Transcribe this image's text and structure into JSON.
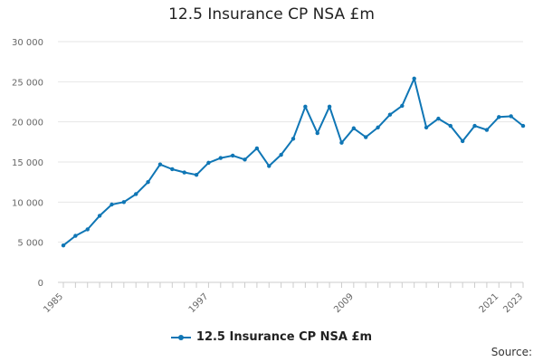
{
  "chart_data": {
    "type": "line",
    "title": "12.5 Insurance CP NSA £m",
    "xlabel": "",
    "ylabel": "",
    "ylim": [
      0,
      30000
    ],
    "y_ticks": [
      0,
      5000,
      10000,
      15000,
      20000,
      25000,
      30000
    ],
    "y_tick_labels": [
      "0",
      "5 000",
      "10 000",
      "15 000",
      "20 000",
      "25 000",
      "30 000"
    ],
    "x_tick_labels": [
      "1985",
      "1997",
      "2009",
      "2021",
      "2023"
    ],
    "x_tick_values": [
      1985,
      1997,
      2009,
      2021,
      2023
    ],
    "x": [
      1985,
      1986,
      1987,
      1988,
      1989,
      1990,
      1991,
      1992,
      1993,
      1994,
      1995,
      1996,
      1997,
      1998,
      1999,
      2000,
      2001,
      2002,
      2003,
      2004,
      2005,
      2006,
      2007,
      2008,
      2009,
      2010,
      2011,
      2012,
      2013,
      2014,
      2015,
      2016,
      2017,
      2018,
      2019,
      2020,
      2021,
      2022,
      2023
    ],
    "series": [
      {
        "name": "12.5 Insurance CP NSA £m",
        "color": "#0f76b5",
        "values": [
          4600,
          5800,
          6600,
          8300,
          9700,
          10000,
          11000,
          12500,
          14700,
          14100,
          13700,
          13400,
          14900,
          15500,
          15800,
          15300,
          16700,
          14500,
          15900,
          17900,
          21900,
          18600,
          21900,
          17400,
          19200,
          18100,
          19300,
          20900,
          22000,
          25400,
          19300,
          20400,
          19500,
          17600,
          19500,
          19000,
          20600,
          20700,
          19500
        ]
      }
    ],
    "grid": "horizontal",
    "legend_position": "bottom-center"
  },
  "legend_label": "12.5 Insurance CP NSA £m",
  "source_label": "Source:"
}
